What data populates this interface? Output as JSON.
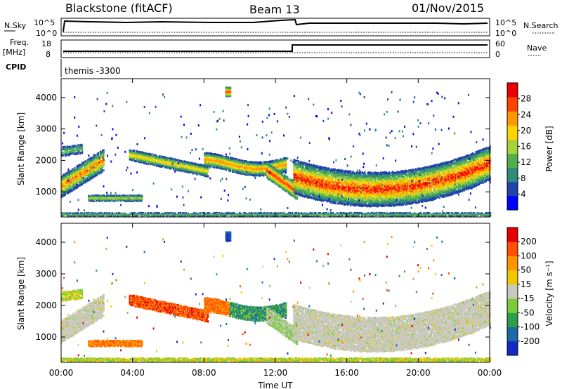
{
  "header": {
    "title": "Blackstone (fitACF)",
    "beam": "Beam 13",
    "date": "01/Nov/2015"
  },
  "status_panels": {
    "nsky_label": "N.Sky",
    "nsky_ticks": [
      "10^5",
      "10^0"
    ],
    "nsearch_label": "N.Search",
    "nsearch_ticks": [
      "10^5",
      "10^0"
    ],
    "freq_label": "Freq.",
    "freq_unit": "[MHz]",
    "freq_ticks": [
      "18",
      "8"
    ],
    "nave_label": "Nave",
    "nave_ticks": [
      "60",
      "0"
    ],
    "cpid_label": "CPID",
    "cpid_value": "themis -3300"
  },
  "chart_data": [
    {
      "type": "heatmap",
      "name": "power",
      "ylabel": "Slant Range [km]",
      "yticks": [
        "4000",
        "3000",
        "2000",
        "1000"
      ],
      "colorbar_label": "Power [dB]",
      "colorbar_ticks": [
        "28",
        "24",
        "20",
        "16",
        "12",
        "8",
        "4"
      ],
      "colors": [
        "#0000ff",
        "#2244aa",
        "#2f8c7a",
        "#52b04a",
        "#a8d23a",
        "#ffd400",
        "#ff9800",
        "#ff4400",
        "#ee0000"
      ]
    },
    {
      "type": "heatmap",
      "name": "velocity",
      "ylabel": "Slant Range [km]",
      "yticks": [
        "4000",
        "3000",
        "2000",
        "1000"
      ],
      "colorbar_label": "Velocity [m s⁻¹]",
      "colorbar_ticks": [
        "200",
        "100",
        "50",
        "15",
        "-15",
        "-50",
        "-100",
        "-200"
      ],
      "colors": [
        "#1428c8",
        "#1a6aa8",
        "#2d9e4a",
        "#7acc3a",
        "#c8c8be",
        "#f0c800",
        "#ff9600",
        "#ff5000",
        "#e60000"
      ]
    }
  ],
  "x_axis": {
    "ticks": [
      "00:00",
      "04:00",
      "08:00",
      "12:00",
      "16:00",
      "20:00",
      "00:00"
    ],
    "label": "Time UT"
  }
}
